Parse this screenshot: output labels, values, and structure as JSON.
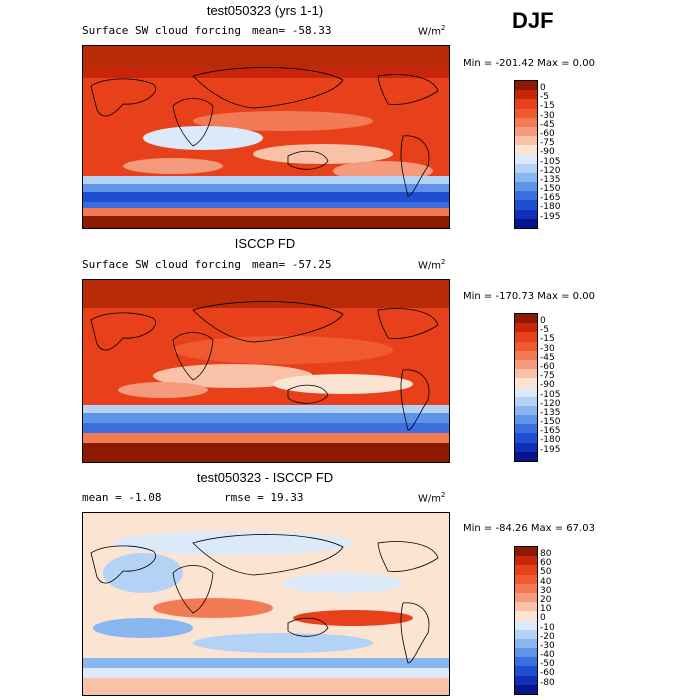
{
  "season": "DJF",
  "panels": [
    {
      "title": "test050323 (yrs 1-1)",
      "variable": "Surface SW cloud forcing",
      "mean_text": "mean=  -58.33",
      "rmse_text": "",
      "units": "W/m",
      "units_sup": "2",
      "minmax": "Min = -201.42 Max =   0.00",
      "colorbar_labels": [
        "0",
        "-5",
        "-15",
        "-30",
        "-45",
        "-60",
        "-75",
        "-90",
        "-105",
        "-120",
        "-135",
        "-150",
        "-165",
        "-180",
        "-195"
      ],
      "colors": [
        "#8b1a00",
        "#c8250a",
        "#e8401a",
        "#f05a30",
        "#f27a55",
        "#f59a7c",
        "#f8c2a8",
        "#fbe4d2",
        "#dbe9f8",
        "#b4d2f5",
        "#8ab6f0",
        "#5f94e8",
        "#3a6fe0",
        "#1f4fd0",
        "#0f2fb8",
        "#07158c"
      ],
      "mean_value": -58.33,
      "min_value": -201.42,
      "max_value": 0.0
    },
    {
      "title": "ISCCP FD",
      "variable": "Surface SW cloud forcing",
      "mean_text": "mean=  -57.25",
      "rmse_text": "",
      "units": "W/m",
      "units_sup": "2",
      "minmax": "Min = -170.73 Max =   0.00",
      "colorbar_labels": [
        "0",
        "-5",
        "-15",
        "-30",
        "-45",
        "-60",
        "-75",
        "-90",
        "-105",
        "-120",
        "-135",
        "-150",
        "-165",
        "-180",
        "-195"
      ],
      "colors": [
        "#8b1a00",
        "#c8250a",
        "#e8401a",
        "#f05a30",
        "#f27a55",
        "#f59a7c",
        "#f8c2a8",
        "#fbe4d2",
        "#dbe9f8",
        "#b4d2f5",
        "#8ab6f0",
        "#5f94e8",
        "#3a6fe0",
        "#1f4fd0",
        "#0f2fb8",
        "#07158c"
      ],
      "mean_value": -57.25,
      "min_value": -170.73,
      "max_value": 0.0
    },
    {
      "title": "test050323 - ISCCP FD",
      "variable": "",
      "mean_text": "mean =   -1.08",
      "rmse_text": "rmse =   19.33",
      "units": "W/m",
      "units_sup": "2",
      "minmax": "Min = -84.26 Max =  67.03",
      "colorbar_labels": [
        "80",
        "60",
        "50",
        "40",
        "30",
        "20",
        "10",
        "0",
        "-10",
        "-20",
        "-30",
        "-40",
        "-50",
        "-60",
        "-80"
      ],
      "colors": [
        "#8b1a00",
        "#c8250a",
        "#e8401a",
        "#f05a30",
        "#f27a55",
        "#f59a7c",
        "#f8c2a8",
        "#fbe4d2",
        "#dbe9f8",
        "#b4d2f5",
        "#8ab6f0",
        "#5f94e8",
        "#3a6fe0",
        "#1f4fd0",
        "#0f2fb8",
        "#07158c"
      ],
      "mean_value": -1.08,
      "rmse_value": 19.33,
      "min_value": -84.26,
      "max_value": 67.03
    }
  ]
}
